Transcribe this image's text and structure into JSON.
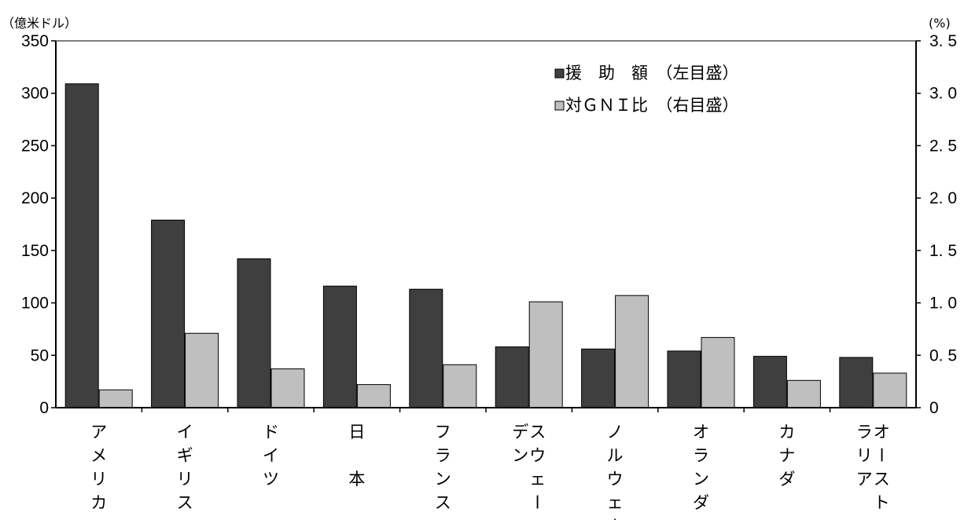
{
  "chart_data": {
    "type": "bar",
    "left_axis_unit": "（億米ドル）",
    "right_axis_unit": "(%)",
    "categories": [
      [
        "アメリカ"
      ],
      [
        "イギリス"
      ],
      [
        "ドイツ"
      ],
      [
        "日　本"
      ],
      [
        "フランス"
      ],
      [
        "スウェー",
        "デン"
      ],
      [
        "ノルウェー"
      ],
      [
        "オランダ"
      ],
      [
        "カナダ"
      ],
      [
        "オースト",
        "ラリア"
      ]
    ],
    "left_axis": {
      "min": 0,
      "max": 350,
      "ticks": [
        "0",
        "50",
        "100",
        "150",
        "200",
        "250",
        "300",
        "350"
      ]
    },
    "right_axis": {
      "min": 0,
      "max": 3.5,
      "ticks": [
        "0",
        "0. 5",
        "1. 0",
        "1. 5",
        "2. 0",
        "2. 5",
        "3. 0",
        "3. 5"
      ]
    },
    "series": [
      {
        "name": "援　助　額　（左目盛）",
        "axis": "left",
        "color": "#3f3f3f",
        "values": [
          309,
          179,
          142,
          116,
          113,
          58,
          56,
          54,
          49,
          48
        ]
      },
      {
        "name": "対ＧＮＩ比　（右目盛）",
        "axis": "right",
        "color": "#bfbfbf",
        "values": [
          0.17,
          0.71,
          0.37,
          0.22,
          0.41,
          1.01,
          1.07,
          0.67,
          0.26,
          0.33
        ]
      }
    ],
    "legend_position": "top-right",
    "grid": false
  }
}
